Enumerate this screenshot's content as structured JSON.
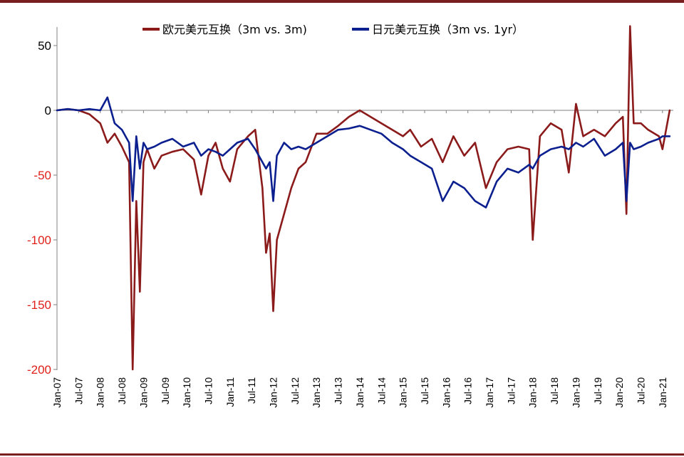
{
  "chart_data": {
    "type": "line",
    "title": "",
    "xlabel": "",
    "ylabel": "",
    "ylim": [
      -200,
      70
    ],
    "yticks": [
      50,
      0,
      -50,
      -100,
      -150,
      -200
    ],
    "xlim": [
      "2007-01",
      "2021-04"
    ],
    "x_tick_labels": [
      "Jan-07",
      "Jul-07",
      "Jan-08",
      "Jul-08",
      "Jan-09",
      "Jul-09",
      "Jan-10",
      "Jul-10",
      "Jan-11",
      "Jul-11",
      "Jan-12",
      "Jul-12",
      "Jan-13",
      "Jul-13",
      "Jan-14",
      "Jul-14",
      "Jan-15",
      "Jul-15",
      "Jan-16",
      "Jul-16",
      "Jan-17",
      "Jul-17",
      "Jan-18",
      "Jul-18",
      "Jan-19",
      "Jul-19",
      "Jan-20",
      "Jul-20",
      "Jan-21"
    ],
    "grid": false,
    "legend_position": "top",
    "colors": {
      "positive_tick": "#000000",
      "negative_tick": "#e0201b"
    },
    "series": [
      {
        "name": "欧元美元互换（3m vs. 3m)",
        "color": "#8b1a1a",
        "points": [
          [
            "2007-01",
            0
          ],
          [
            "2007-04",
            1
          ],
          [
            "2007-07",
            0
          ],
          [
            "2007-10",
            -3
          ],
          [
            "2008-01",
            -10
          ],
          [
            "2008-03",
            -25
          ],
          [
            "2008-05",
            -18
          ],
          [
            "2008-07",
            -28
          ],
          [
            "2008-09",
            -40
          ],
          [
            "2008-10",
            -200
          ],
          [
            "2008-11",
            -70
          ],
          [
            "2008-12",
            -140
          ],
          [
            "2009-01",
            -40
          ],
          [
            "2009-02",
            -30
          ],
          [
            "2009-04",
            -45
          ],
          [
            "2009-06",
            -35
          ],
          [
            "2009-09",
            -32
          ],
          [
            "2009-12",
            -30
          ],
          [
            "2010-03",
            -38
          ],
          [
            "2010-05",
            -65
          ],
          [
            "2010-07",
            -35
          ],
          [
            "2010-09",
            -25
          ],
          [
            "2010-11",
            -45
          ],
          [
            "2011-01",
            -55
          ],
          [
            "2011-03",
            -30
          ],
          [
            "2011-06",
            -20
          ],
          [
            "2011-08",
            -15
          ],
          [
            "2011-10",
            -60
          ],
          [
            "2011-11",
            -110
          ],
          [
            "2011-12",
            -95
          ],
          [
            "2012-01",
            -155
          ],
          [
            "2012-02",
            -100
          ],
          [
            "2012-04",
            -80
          ],
          [
            "2012-06",
            -60
          ],
          [
            "2012-08",
            -45
          ],
          [
            "2012-10",
            -40
          ],
          [
            "2013-01",
            -18
          ],
          [
            "2013-04",
            -18
          ],
          [
            "2013-07",
            -12
          ],
          [
            "2013-10",
            -5
          ],
          [
            "2014-01",
            0
          ],
          [
            "2014-04",
            -5
          ],
          [
            "2014-07",
            -10
          ],
          [
            "2014-10",
            -15
          ],
          [
            "2015-01",
            -20
          ],
          [
            "2015-03",
            -15
          ],
          [
            "2015-06",
            -28
          ],
          [
            "2015-09",
            -22
          ],
          [
            "2015-12",
            -40
          ],
          [
            "2016-03",
            -20
          ],
          [
            "2016-06",
            -35
          ],
          [
            "2016-09",
            -25
          ],
          [
            "2016-12",
            -60
          ],
          [
            "2017-03",
            -40
          ],
          [
            "2017-06",
            -30
          ],
          [
            "2017-09",
            -28
          ],
          [
            "2017-12",
            -30
          ],
          [
            "2018-01",
            -100
          ],
          [
            "2018-03",
            -20
          ],
          [
            "2018-06",
            -10
          ],
          [
            "2018-09",
            -15
          ],
          [
            "2018-11",
            -48
          ],
          [
            "2019-01",
            5
          ],
          [
            "2019-03",
            -20
          ],
          [
            "2019-06",
            -15
          ],
          [
            "2019-09",
            -20
          ],
          [
            "2019-12",
            -10
          ],
          [
            "2020-02",
            -5
          ],
          [
            "2020-03",
            -80
          ],
          [
            "2020-04",
            65
          ],
          [
            "2020-05",
            -10
          ],
          [
            "2020-07",
            -10
          ],
          [
            "2020-09",
            -15
          ],
          [
            "2020-12",
            -20
          ],
          [
            "2021-01",
            -30
          ],
          [
            "2021-03",
            0
          ]
        ]
      },
      {
        "name": "日元美元互换（3m vs. 1yr）",
        "color": "#0b1f8f",
        "points": [
          [
            "2007-01",
            0
          ],
          [
            "2007-04",
            1
          ],
          [
            "2007-07",
            0
          ],
          [
            "2007-10",
            1
          ],
          [
            "2008-01",
            0
          ],
          [
            "2008-03",
            10
          ],
          [
            "2008-05",
            -10
          ],
          [
            "2008-07",
            -15
          ],
          [
            "2008-09",
            -25
          ],
          [
            "2008-10",
            -70
          ],
          [
            "2008-11",
            -20
          ],
          [
            "2008-12",
            -45
          ],
          [
            "2009-01",
            -25
          ],
          [
            "2009-02",
            -30
          ],
          [
            "2009-04",
            -28
          ],
          [
            "2009-06",
            -25
          ],
          [
            "2009-09",
            -22
          ],
          [
            "2009-12",
            -28
          ],
          [
            "2010-03",
            -25
          ],
          [
            "2010-05",
            -35
          ],
          [
            "2010-07",
            -30
          ],
          [
            "2010-09",
            -32
          ],
          [
            "2010-11",
            -35
          ],
          [
            "2011-01",
            -30
          ],
          [
            "2011-03",
            -25
          ],
          [
            "2011-06",
            -22
          ],
          [
            "2011-08",
            -30
          ],
          [
            "2011-10",
            -40
          ],
          [
            "2011-11",
            -45
          ],
          [
            "2011-12",
            -40
          ],
          [
            "2012-01",
            -70
          ],
          [
            "2012-02",
            -35
          ],
          [
            "2012-04",
            -25
          ],
          [
            "2012-06",
            -30
          ],
          [
            "2012-08",
            -28
          ],
          [
            "2012-10",
            -30
          ],
          [
            "2013-01",
            -25
          ],
          [
            "2013-04",
            -20
          ],
          [
            "2013-07",
            -15
          ],
          [
            "2013-10",
            -14
          ],
          [
            "2014-01",
            -12
          ],
          [
            "2014-04",
            -15
          ],
          [
            "2014-07",
            -18
          ],
          [
            "2014-10",
            -25
          ],
          [
            "2015-01",
            -30
          ],
          [
            "2015-03",
            -35
          ],
          [
            "2015-06",
            -40
          ],
          [
            "2015-09",
            -45
          ],
          [
            "2015-12",
            -70
          ],
          [
            "2016-03",
            -55
          ],
          [
            "2016-06",
            -60
          ],
          [
            "2016-09",
            -70
          ],
          [
            "2016-12",
            -75
          ],
          [
            "2017-03",
            -55
          ],
          [
            "2017-06",
            -45
          ],
          [
            "2017-09",
            -48
          ],
          [
            "2017-12",
            -42
          ],
          [
            "2018-01",
            -45
          ],
          [
            "2018-03",
            -35
          ],
          [
            "2018-06",
            -30
          ],
          [
            "2018-09",
            -28
          ],
          [
            "2018-11",
            -30
          ],
          [
            "2019-01",
            -25
          ],
          [
            "2019-03",
            -28
          ],
          [
            "2019-06",
            -22
          ],
          [
            "2019-09",
            -35
          ],
          [
            "2019-12",
            -30
          ],
          [
            "2020-02",
            -25
          ],
          [
            "2020-03",
            -70
          ],
          [
            "2020-04",
            -25
          ],
          [
            "2020-05",
            -30
          ],
          [
            "2020-07",
            -28
          ],
          [
            "2020-09",
            -25
          ],
          [
            "2020-12",
            -22
          ],
          [
            "2021-01",
            -20
          ],
          [
            "2021-03",
            -20
          ]
        ]
      }
    ]
  }
}
